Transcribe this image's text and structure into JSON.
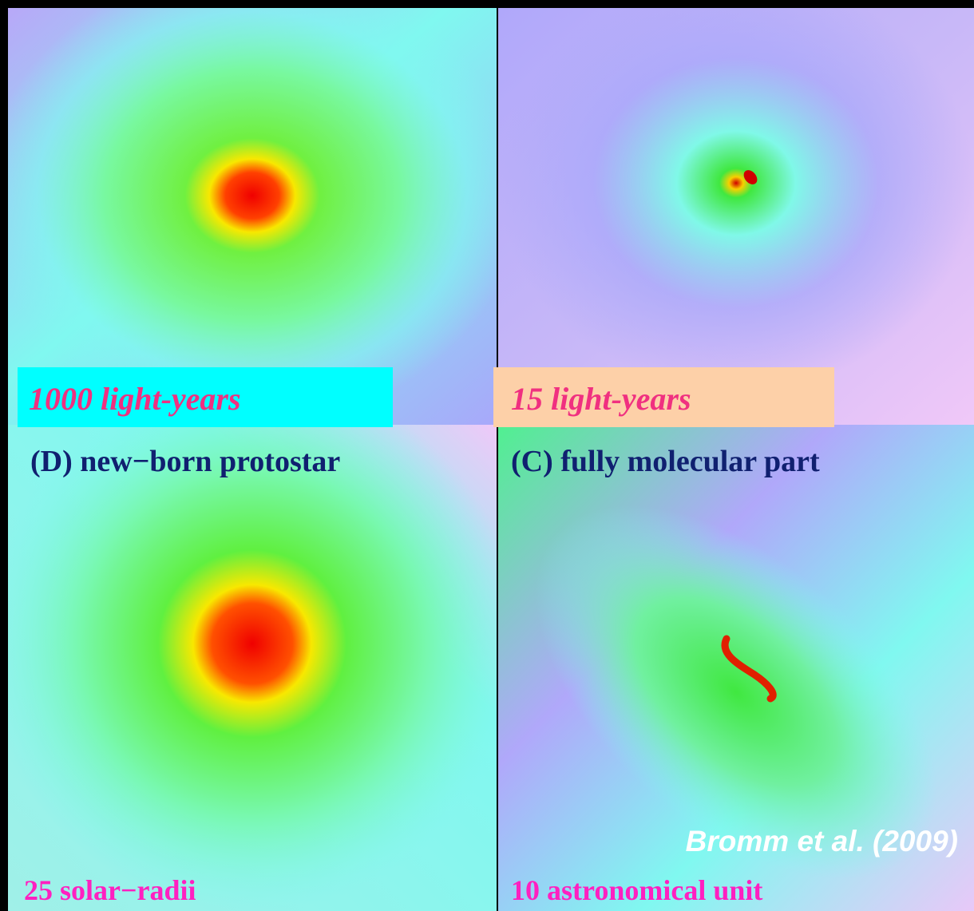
{
  "panels": [
    {
      "scale": "1000 light-years"
    },
    {
      "scale": "15 light-years"
    },
    {
      "title": "(D) new−born protostar",
      "scale": "25 solar−radii"
    },
    {
      "title": "(C) fully molecular part",
      "scale": "10 astronomical unit",
      "credit": "Bromm et al. (2009)"
    }
  ]
}
